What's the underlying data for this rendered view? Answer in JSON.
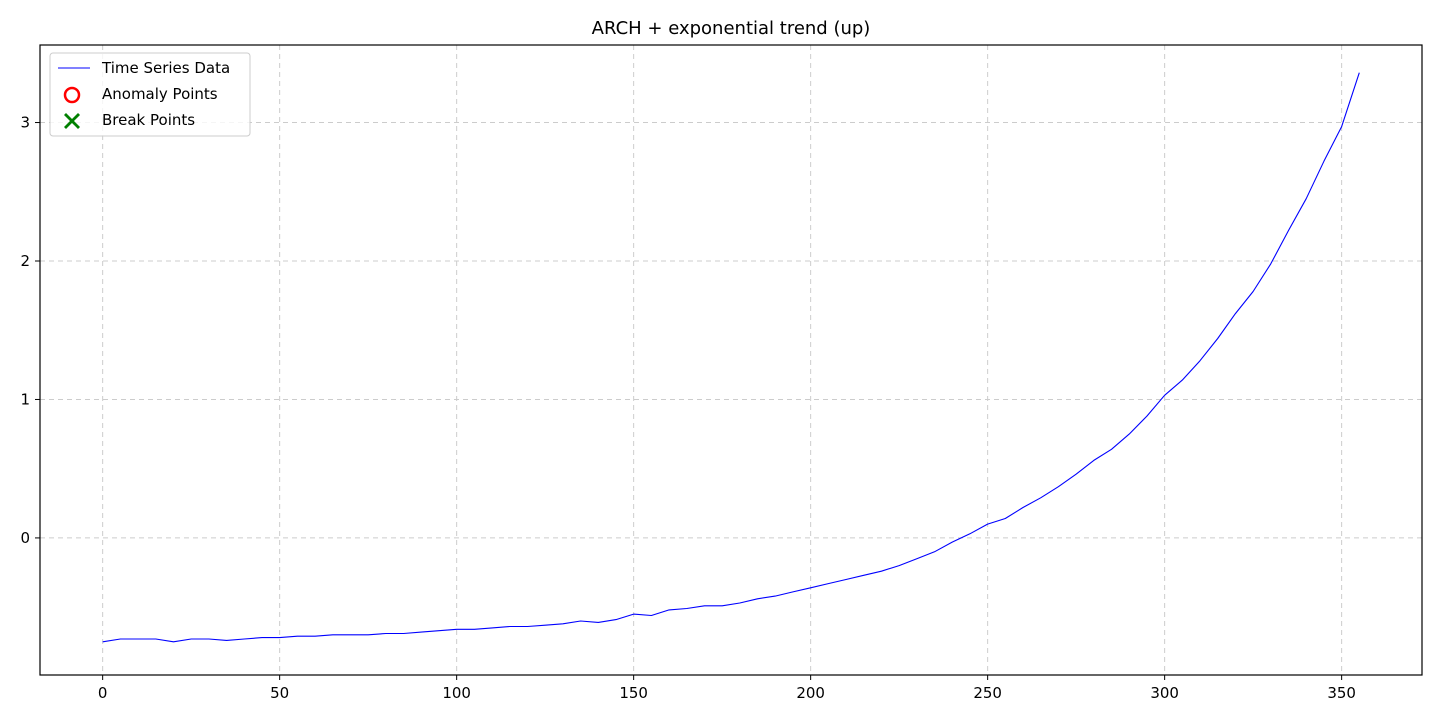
{
  "chart_data": {
    "type": "line",
    "title": "ARCH + exponential trend (up)",
    "xlabel": "",
    "ylabel": "",
    "xlim": [
      -17.7,
      372.7
    ],
    "ylim": [
      -0.99,
      3.56
    ],
    "x_ticks": [
      0,
      50,
      100,
      150,
      200,
      250,
      300,
      350
    ],
    "y_ticks": [
      0,
      1,
      2,
      3
    ],
    "grid": true,
    "legend_position": "top-left",
    "colors": {
      "series": "#0000ff",
      "anomaly": "#ff0000",
      "break": "#008000",
      "grid": "#cccccc"
    },
    "legend": [
      {
        "label": "Time Series Data",
        "marker": "line",
        "color": "#0000ff"
      },
      {
        "label": "Anomaly Points",
        "marker": "circle",
        "color": "#ff0000"
      },
      {
        "label": "Break Points",
        "marker": "x",
        "color": "#008000"
      }
    ],
    "series": [
      {
        "name": "Time Series Data",
        "x": [
          0,
          5,
          10,
          15,
          20,
          25,
          30,
          35,
          40,
          45,
          50,
          55,
          60,
          65,
          70,
          75,
          80,
          85,
          90,
          95,
          100,
          105,
          110,
          115,
          120,
          125,
          130,
          135,
          140,
          145,
          150,
          155,
          160,
          165,
          170,
          175,
          180,
          185,
          190,
          195,
          200,
          205,
          210,
          215,
          220,
          225,
          230,
          235,
          240,
          245,
          250,
          255,
          260,
          265,
          270,
          275,
          280,
          285,
          290,
          295,
          300,
          305,
          310,
          315,
          320,
          325,
          330,
          335,
          340,
          345,
          350,
          355
        ],
        "values": [
          -0.75,
          -0.73,
          -0.73,
          -0.73,
          -0.75,
          -0.73,
          -0.73,
          -0.74,
          -0.73,
          -0.72,
          -0.72,
          -0.71,
          -0.71,
          -0.7,
          -0.7,
          -0.7,
          -0.69,
          -0.69,
          -0.68,
          -0.67,
          -0.66,
          -0.66,
          -0.65,
          -0.64,
          -0.64,
          -0.63,
          -0.62,
          -0.6,
          -0.61,
          -0.59,
          -0.55,
          -0.56,
          -0.52,
          -0.51,
          -0.49,
          -0.49,
          -0.47,
          -0.44,
          -0.42,
          -0.39,
          -0.36,
          -0.33,
          -0.3,
          -0.27,
          -0.24,
          -0.2,
          -0.15,
          -0.1,
          -0.03,
          0.03,
          0.1,
          0.14,
          0.22,
          0.29,
          0.37,
          0.46,
          0.56,
          0.64,
          0.75,
          0.88,
          1.03,
          1.14,
          1.28,
          1.44,
          1.62,
          1.78,
          1.98,
          2.22,
          2.45,
          2.72,
          2.97,
          3.36
        ]
      }
    ],
    "anomaly_points": [],
    "break_points": []
  }
}
